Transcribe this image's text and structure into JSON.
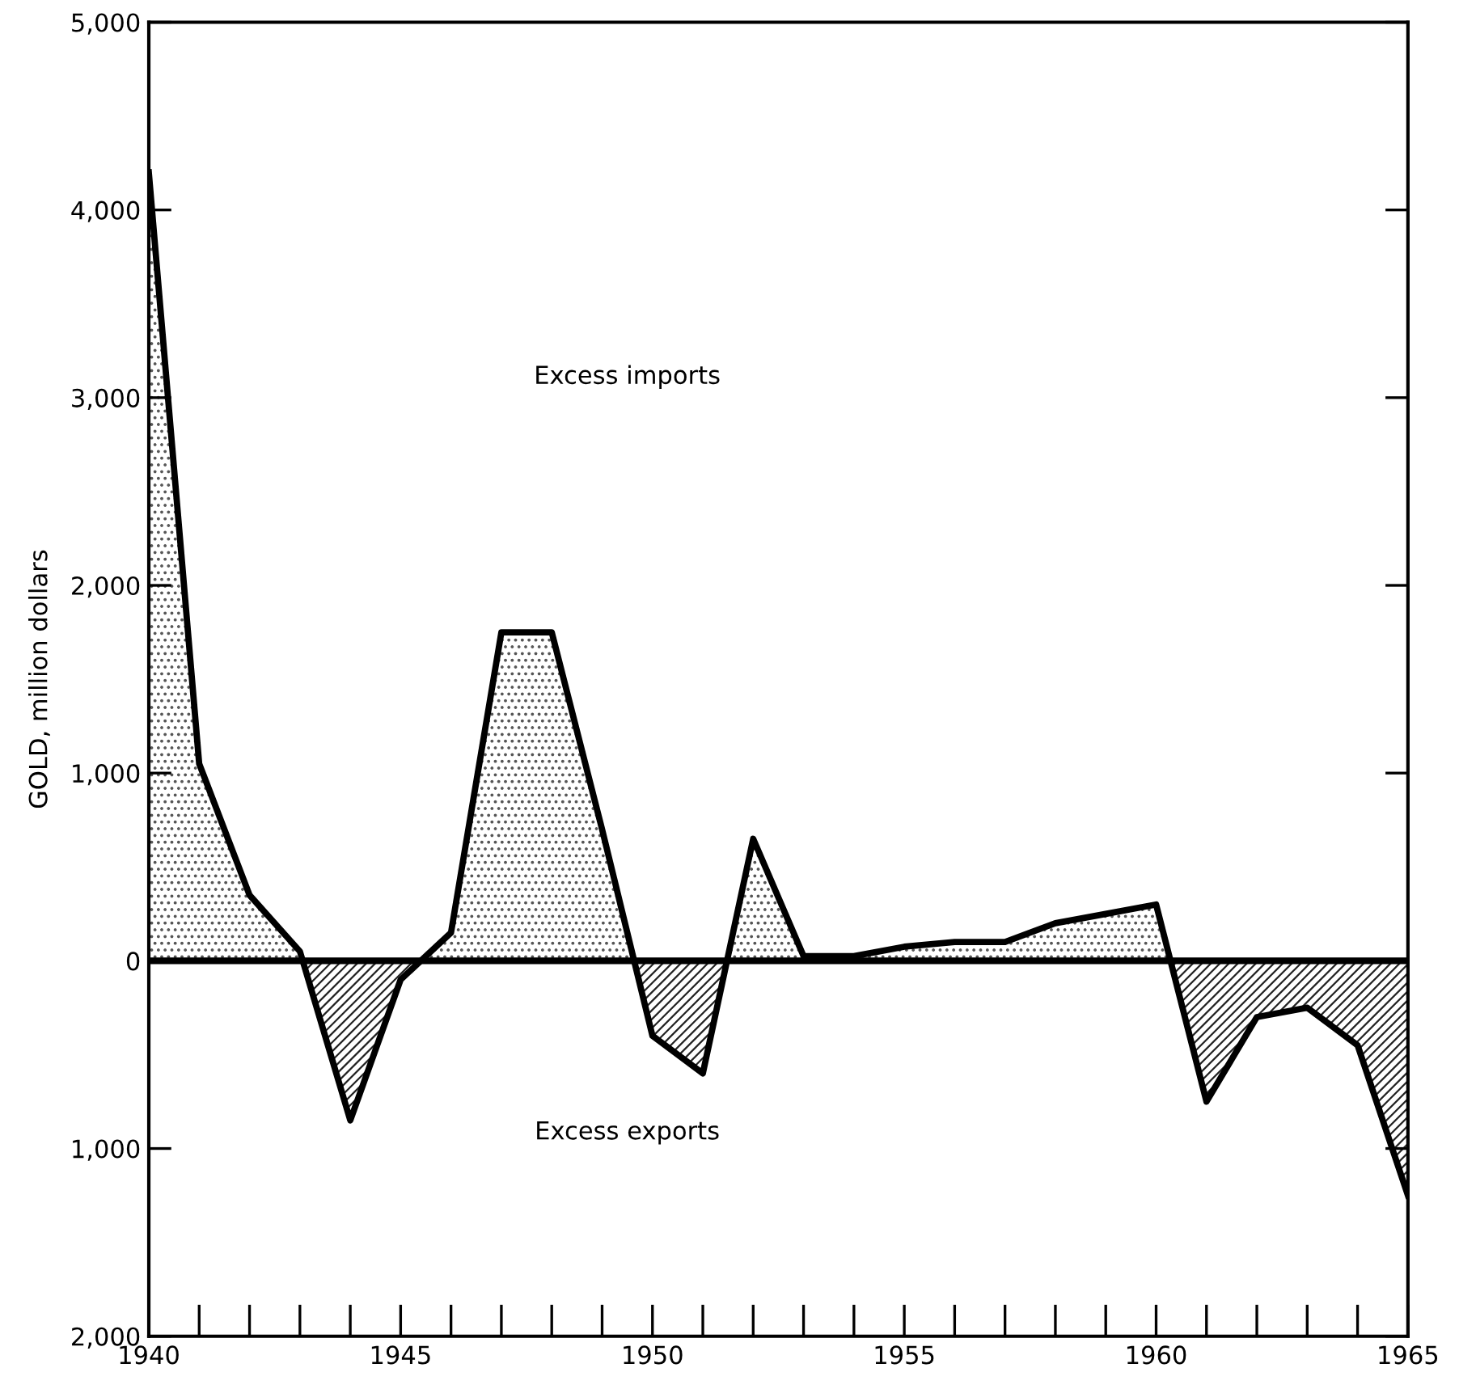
{
  "chart_data": {
    "type": "area",
    "ylabel": "GOLD, million dollars",
    "x": [
      1940,
      1941,
      1942,
      1943,
      1944,
      1945,
      1946,
      1947,
      1948,
      1949,
      1950,
      1951,
      1952,
      1953,
      1954,
      1955,
      1956,
      1957,
      1958,
      1959,
      1960,
      1961,
      1962,
      1963,
      1964,
      1965
    ],
    "series": [
      {
        "color": "#000000",
        "values": [
          4200,
          1050,
          350,
          50,
          -850,
          -100,
          150,
          1750,
          1750,
          700,
          -400,
          -600,
          650,
          25,
          25,
          75,
          100,
          100,
          200,
          250,
          300,
          -750,
          -300,
          -250,
          -450,
          -1250
        ]
      }
    ],
    "xlim": [
      1940,
      1965
    ],
    "xticks": [
      1940,
      1945,
      1950,
      1955,
      1960,
      1965
    ],
    "ylim": [
      -2000,
      5000
    ],
    "yticks": [
      {
        "value": 5000,
        "label": "5,000"
      },
      {
        "value": 4000,
        "label": "4,000"
      },
      {
        "value": 3000,
        "label": "3,000"
      },
      {
        "value": 2000,
        "label": "2,000"
      },
      {
        "value": 1000,
        "label": "1,000"
      },
      0,
      {
        "value": -1000,
        "label": "1,000"
      },
      {
        "value": -2000,
        "label": "2,000"
      }
    ],
    "ref_lines": [
      {
        "axis": "y",
        "value": 0,
        "color": "#000000"
      }
    ],
    "annotations": [
      "Excess imports",
      "Excess exports"
    ],
    "grid": false,
    "legend": false
  }
}
